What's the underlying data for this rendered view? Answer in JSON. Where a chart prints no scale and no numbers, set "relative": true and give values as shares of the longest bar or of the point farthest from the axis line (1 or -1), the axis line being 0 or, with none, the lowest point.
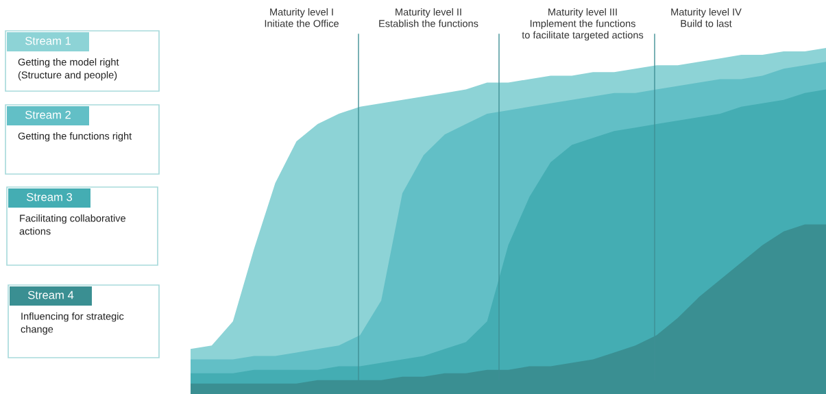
{
  "chart_data": {
    "type": "area",
    "relative": true,
    "legend": "left",
    "categories": [
      null,
      null,
      null,
      null,
      null,
      null,
      null,
      null,
      null,
      null,
      null,
      null,
      null,
      null,
      null,
      null,
      null,
      null,
      null,
      null,
      null,
      null,
      null,
      null,
      null,
      null,
      null,
      null,
      null,
      null,
      null
    ],
    "series": [
      {
        "name": "Stream 1",
        "color": "#8dd3d6",
        "values": [
          0.13,
          0.14,
          0.21,
          0.42,
          0.61,
          0.73,
          0.78,
          0.81,
          0.83,
          0.84,
          0.85,
          0.86,
          0.87,
          0.88,
          0.9,
          0.9,
          0.91,
          0.92,
          0.92,
          0.93,
          0.93,
          0.94,
          0.95,
          0.95,
          0.96,
          0.97,
          0.98,
          0.98,
          0.99,
          0.99,
          1.0
        ]
      },
      {
        "name": "Stream 2",
        "color": "#62bfc6",
        "values": [
          0.1,
          0.1,
          0.1,
          0.11,
          0.11,
          0.12,
          0.13,
          0.14,
          0.17,
          0.27,
          0.58,
          0.69,
          0.75,
          0.78,
          0.81,
          0.82,
          0.83,
          0.84,
          0.85,
          0.86,
          0.87,
          0.87,
          0.88,
          0.89,
          0.9,
          0.91,
          0.91,
          0.92,
          0.94,
          0.95,
          0.96
        ]
      },
      {
        "name": "Stream 3",
        "color": "#44adb3",
        "values": [
          0.06,
          0.06,
          0.06,
          0.07,
          0.07,
          0.07,
          0.07,
          0.08,
          0.08,
          0.09,
          0.1,
          0.11,
          0.13,
          0.15,
          0.21,
          0.43,
          0.57,
          0.67,
          0.72,
          0.74,
          0.76,
          0.77,
          0.78,
          0.79,
          0.8,
          0.81,
          0.83,
          0.84,
          0.85,
          0.87,
          0.88
        ]
      },
      {
        "name": "Stream 4",
        "color": "#3a8f92",
        "values": [
          0.03,
          0.03,
          0.03,
          0.03,
          0.03,
          0.03,
          0.04,
          0.04,
          0.04,
          0.04,
          0.05,
          0.05,
          0.06,
          0.06,
          0.07,
          0.07,
          0.08,
          0.08,
          0.09,
          0.1,
          0.12,
          0.14,
          0.17,
          0.22,
          0.28,
          0.33,
          0.38,
          0.43,
          0.47,
          0.49,
          0.49
        ]
      }
    ],
    "annotations": [
      "Getting the model right\n(Structure and people)",
      "Getting the functions right",
      "Facilitating collaborative\nactions",
      "Influencing for strategic\nchange",
      "Maturity level I\nInitiate the Office",
      "Maturity level II\nEstablish the functions",
      "Maturity level III\nImplement the functions\nto facilitate targeted actions",
      "Maturity level IV\nBuild to last"
    ]
  }
}
